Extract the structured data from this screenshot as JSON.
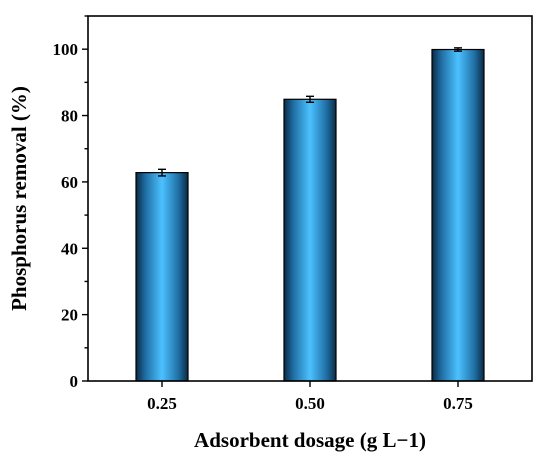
{
  "chart_data": {
    "type": "bar",
    "categories": [
      "0.25",
      "0.50",
      "0.75"
    ],
    "values": [
      62.8,
      84.9,
      99.9
    ],
    "errors": [
      1.0,
      0.9,
      0.5
    ],
    "xlabel": "Adsorbent dosage (g L−1)",
    "ylabel": "Phosphorus removal (%)",
    "ylim": [
      0,
      110
    ],
    "yticks": [
      "0",
      "20",
      "40",
      "60",
      "80",
      "100"
    ],
    "bar_color": "#3ab0f0",
    "grid": false,
    "legend": "none"
  }
}
